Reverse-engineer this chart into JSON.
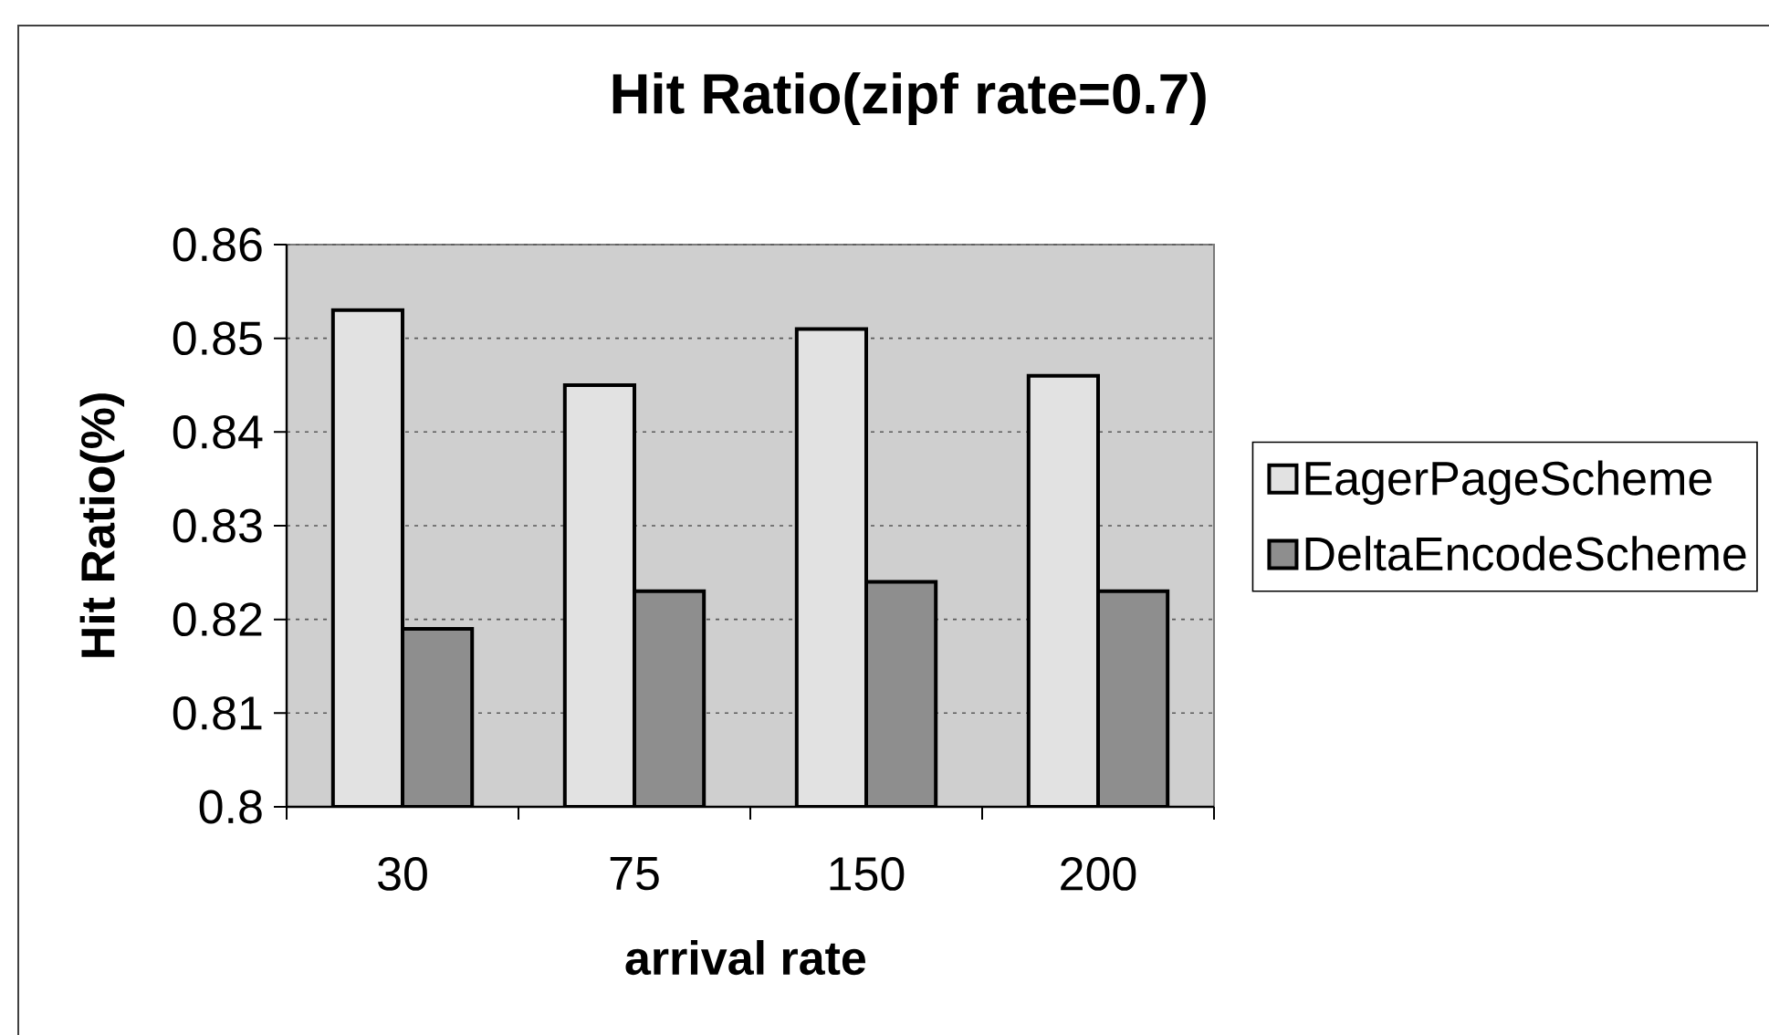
{
  "chart_data": {
    "type": "bar",
    "title": "Hit Ratio(zipf rate=0.7)",
    "xlabel": "arrival rate",
    "ylabel": "Hit Ratio(%)",
    "categories": [
      "30",
      "75",
      "150",
      "200"
    ],
    "series": [
      {
        "name": "EagerPageScheme",
        "color": "#e2e2e2",
        "values": [
          0.853,
          0.845,
          0.851,
          0.846
        ]
      },
      {
        "name": "DeltaEncodeScheme",
        "color": "#8e8e8e",
        "values": [
          0.819,
          0.823,
          0.824,
          0.823
        ]
      }
    ],
    "ylim": [
      0.8,
      0.86
    ],
    "yticks": [
      0.8,
      0.81,
      0.82,
      0.83,
      0.84,
      0.85,
      0.86
    ],
    "grid": "y",
    "legend": "right"
  }
}
